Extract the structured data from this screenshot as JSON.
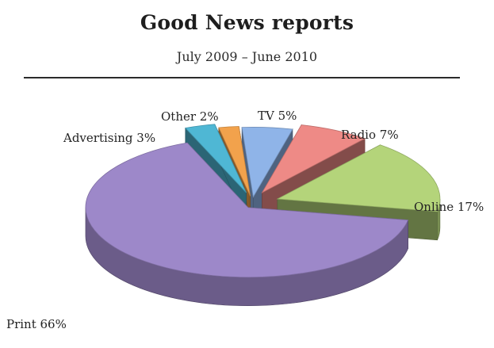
{
  "chart_data": {
    "type": "pie",
    "title": "Good News reports",
    "subtitle": "July 2009 – June 2010",
    "legend": "none",
    "slices": [
      {
        "label": "TV",
        "value": 5,
        "display": "TV 5%",
        "color": "#8fb4e8"
      },
      {
        "label": "Radio",
        "value": 7,
        "display": "Radio 7%",
        "color": "#ee8a86"
      },
      {
        "label": "Online",
        "value": 17,
        "display": "Online 17%",
        "color": "#b4d47a"
      },
      {
        "label": "Print",
        "value": 66,
        "display": "Print 66%",
        "color": "#9d88c9"
      },
      {
        "label": "Advertising",
        "value": 3,
        "display": "Advertising 3%",
        "color": "#4fb7d4"
      },
      {
        "label": "Other",
        "value": 2,
        "display": "Other 2%",
        "color": "#f2a24c"
      }
    ]
  }
}
